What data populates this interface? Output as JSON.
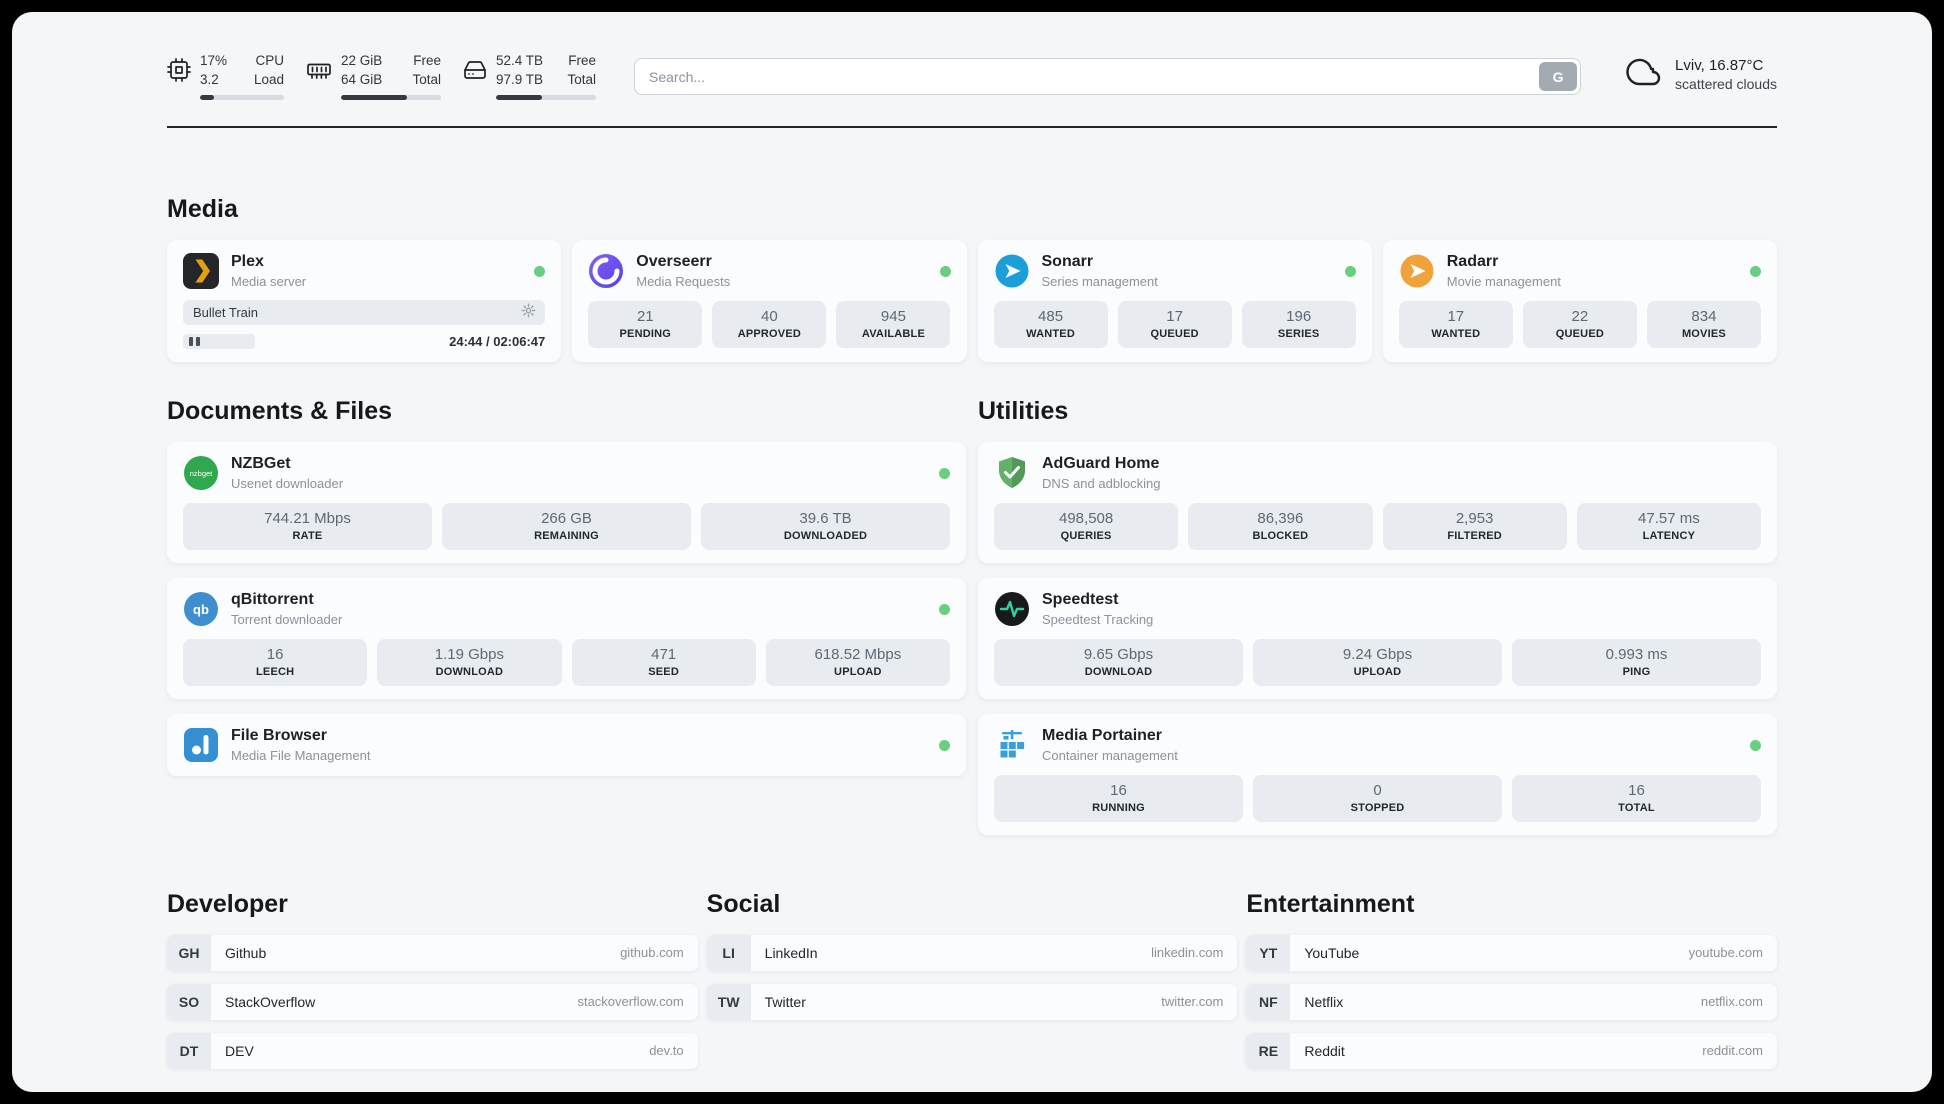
{
  "colors": {
    "status_online": "#69cf7f",
    "page_background": "#f4f6f8",
    "tile_background": "#e8ecf1",
    "accent_dark": "#212529"
  },
  "topbar": {
    "cpu": {
      "icon": "cpu-chip-icon",
      "value": "17%",
      "sub_value": "3.2",
      "label": "CPU",
      "sub_label": "Load",
      "used_pct": 17
    },
    "memory": {
      "icon": "memory-icon",
      "value": "22 GiB",
      "sub_value": "64 GiB",
      "label": "Free",
      "sub_label": "Total",
      "used_pct": 66
    },
    "storage": {
      "icon": "hard-drive-icon",
      "value": "52.4 TB",
      "sub_value": "97.9 TB",
      "label": "Free",
      "sub_label": "Total",
      "used_pct": 46
    },
    "search": {
      "placeholder": "Search...",
      "button_label": "G"
    },
    "weather": {
      "icon": "cloud-icon",
      "location_temp": "Lviv, 16.87°C",
      "condition": "scattered clouds"
    }
  },
  "media": {
    "title": "Media",
    "plex": {
      "name": "Plex",
      "description": "Media server",
      "icon": "plex-icon",
      "online": true,
      "now_playing": "Bullet Train",
      "time": "24:44 / 02:06:47"
    },
    "overseerr": {
      "name": "Overseerr",
      "description": "Media Requests",
      "icon": "overseerr-icon",
      "online": true,
      "stats": [
        {
          "value": "21",
          "label": "PENDING"
        },
        {
          "value": "40",
          "label": "APPROVED"
        },
        {
          "value": "945",
          "label": "AVAILABLE"
        }
      ]
    },
    "sonarr": {
      "name": "Sonarr",
      "description": "Series management",
      "icon": "sonarr-icon",
      "online": true,
      "stats": [
        {
          "value": "485",
          "label": "WANTED"
        },
        {
          "value": "17",
          "label": "QUEUED"
        },
        {
          "value": "196",
          "label": "SERIES"
        }
      ]
    },
    "radarr": {
      "name": "Radarr",
      "description": "Movie management",
      "icon": "radarr-icon",
      "online": true,
      "stats": [
        {
          "value": "17",
          "label": "WANTED"
        },
        {
          "value": "22",
          "label": "QUEUED"
        },
        {
          "value": "834",
          "label": "MOVIES"
        }
      ]
    }
  },
  "documents": {
    "title": "Documents & Files",
    "nzbget": {
      "name": "NZBGet",
      "description": "Usenet downloader",
      "icon": "nzbget-icon",
      "online": true,
      "stats": [
        {
          "value": "744.21 Mbps",
          "label": "RATE"
        },
        {
          "value": "266 GB",
          "label": "REMAINING"
        },
        {
          "value": "39.6 TB",
          "label": "DOWNLOADED"
        }
      ]
    },
    "qbittorrent": {
      "name": "qBittorrent",
      "description": "Torrent downloader",
      "icon": "qbittorrent-icon",
      "online": true,
      "stats": [
        {
          "value": "16",
          "label": "LEECH"
        },
        {
          "value": "1.19 Gbps",
          "label": "DOWNLOAD"
        },
        {
          "value": "471",
          "label": "SEED"
        },
        {
          "value": "618.52 Mbps",
          "label": "UPLOAD"
        }
      ]
    },
    "filebrowser": {
      "name": "File Browser",
      "description": "Media File Management",
      "icon": "filebrowser-icon",
      "online": true
    }
  },
  "utilities": {
    "title": "Utilities",
    "adguard": {
      "name": "AdGuard Home",
      "description": "DNS and adblocking",
      "icon": "adguard-icon",
      "online": false,
      "stats": [
        {
          "value": "498,508",
          "label": "QUERIES"
        },
        {
          "value": "86,396",
          "label": "BLOCKED"
        },
        {
          "value": "2,953",
          "label": "FILTERED"
        },
        {
          "value": "47.57 ms",
          "label": "LATENCY"
        }
      ]
    },
    "speedtest": {
      "name": "Speedtest",
      "description": "Speedtest Tracking",
      "icon": "speedtest-icon",
      "online": false,
      "stats": [
        {
          "value": "9.65 Gbps",
          "label": "DOWNLOAD"
        },
        {
          "value": "9.24 Gbps",
          "label": "UPLOAD"
        },
        {
          "value": "0.993 ms",
          "label": "PING"
        }
      ]
    },
    "portainer": {
      "name": "Media Portainer",
      "description": "Container management",
      "icon": "portainer-icon",
      "online": true,
      "stats": [
        {
          "value": "16",
          "label": "RUNNING"
        },
        {
          "value": "0",
          "label": "STOPPED"
        },
        {
          "value": "16",
          "label": "TOTAL"
        }
      ]
    }
  },
  "bookmarks": {
    "developer": {
      "title": "Developer",
      "items": [
        {
          "abbr": "GH",
          "name": "Github",
          "url": "github.com"
        },
        {
          "abbr": "SO",
          "name": "StackOverflow",
          "url": "stackoverflow.com"
        },
        {
          "abbr": "DT",
          "name": "DEV",
          "url": "dev.to"
        }
      ]
    },
    "social": {
      "title": "Social",
      "items": [
        {
          "abbr": "LI",
          "name": "LinkedIn",
          "url": "linkedin.com"
        },
        {
          "abbr": "TW",
          "name": "Twitter",
          "url": "twitter.com"
        }
      ]
    },
    "entertainment": {
      "title": "Entertainment",
      "items": [
        {
          "abbr": "YT",
          "name": "YouTube",
          "url": "youtube.com"
        },
        {
          "abbr": "NF",
          "name": "Netflix",
          "url": "netflix.com"
        },
        {
          "abbr": "RE",
          "name": "Reddit",
          "url": "reddit.com"
        }
      ]
    }
  }
}
